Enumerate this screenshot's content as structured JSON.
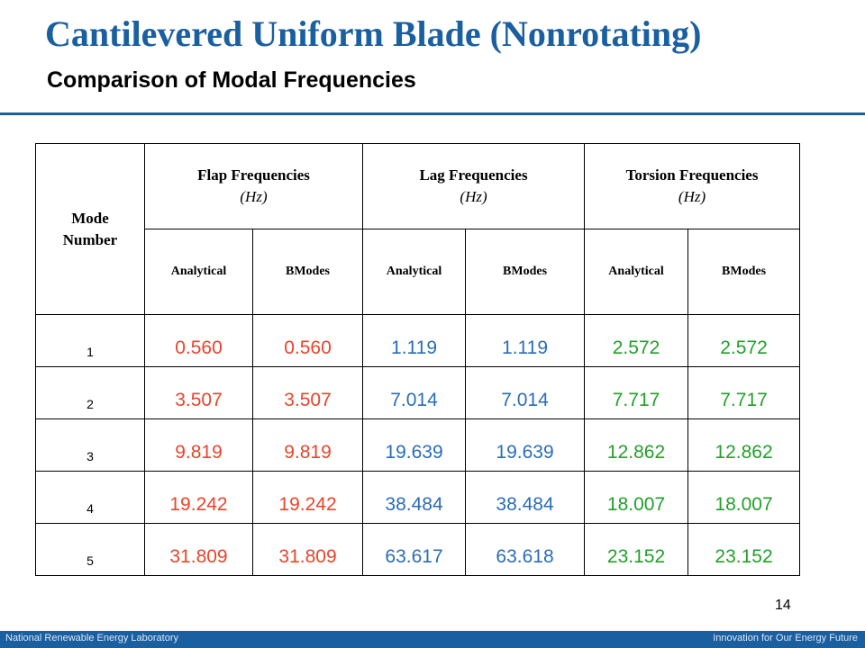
{
  "slide": {
    "title": "Cantilevered Uniform Blade (Nonrotating)",
    "subtitle": "Comparison of Modal Frequencies",
    "page_number": "14"
  },
  "colors": {
    "title": "#1a5fa0",
    "flap": "#e8442c",
    "lag": "#2a6db8",
    "torsion": "#22a02a",
    "footer": "#1a5fa0"
  },
  "table": {
    "mode_header": "Mode Number",
    "groups": [
      {
        "label": "Flap Frequencies",
        "unit": "(Hz)"
      },
      {
        "label": "Lag Frequencies",
        "unit": "(Hz)"
      },
      {
        "label": "Torsion Frequencies",
        "unit": "(Hz)"
      }
    ],
    "subheaders": [
      "Analytical",
      "BModes",
      "Analytical",
      "BModes",
      "Analytical",
      "BModes"
    ],
    "rows": [
      {
        "mode": "1",
        "values": [
          "0.560",
          "0.560",
          "1.119",
          "1.119",
          "2.572",
          "2.572"
        ]
      },
      {
        "mode": "2",
        "values": [
          "3.507",
          "3.507",
          "7.014",
          "7.014",
          "7.717",
          "7.717"
        ]
      },
      {
        "mode": "3",
        "values": [
          "9.819",
          "9.819",
          "19.639",
          "19.639",
          "12.862",
          "12.862"
        ]
      },
      {
        "mode": "4",
        "values": [
          "19.242",
          "19.242",
          "38.484",
          "38.484",
          "18.007",
          "18.007"
        ]
      },
      {
        "mode": "5",
        "values": [
          "31.809",
          "31.809",
          "63.617",
          "63.618",
          "23.152",
          "23.152"
        ]
      }
    ]
  },
  "footer": {
    "left": "National Renewable Energy Laboratory",
    "right": "Innovation for Our Energy Future"
  }
}
